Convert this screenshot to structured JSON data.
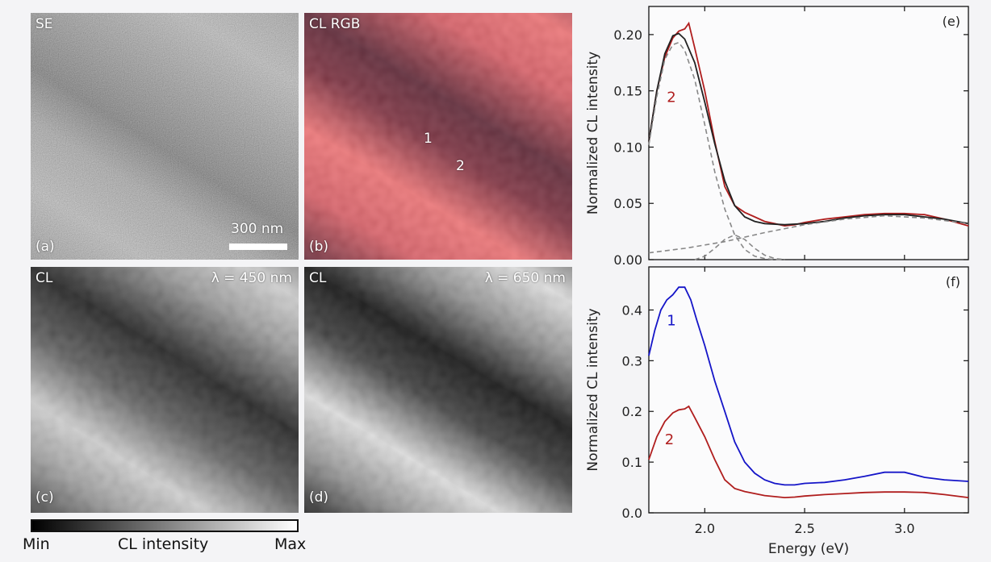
{
  "images": {
    "a": {
      "panel_tag": "(a)",
      "mode": "SE",
      "scalebar_label": "300 nm"
    },
    "b": {
      "panel_tag": "(b)",
      "mode": "CL RGB",
      "point_1": "1",
      "point_2": "2"
    },
    "c": {
      "panel_tag": "(c)",
      "mode": "CL",
      "wavelength": "λ = 450 nm"
    },
    "d": {
      "panel_tag": "(d)",
      "mode": "CL",
      "wavelength": "λ = 650 nm"
    }
  },
  "colorbar": {
    "min_label": "Min",
    "title": "CL intensity",
    "max_label": "Max"
  },
  "colors": {
    "red": "#b01e1e",
    "blue": "#1515c8",
    "fit": "#222222",
    "gauss": "#888888"
  },
  "chart_data": [
    {
      "type": "line",
      "panel_tag": "(e)",
      "ylabel": "Normalized CL intensity",
      "xlabel": "",
      "xlim": [
        1.72,
        3.32
      ],
      "ylim": [
        0.0,
        0.225
      ],
      "xticks": [
        2.0,
        2.5,
        3.0
      ],
      "yticks": [
        0.0,
        0.05,
        0.1,
        0.15,
        0.2
      ],
      "ytick_labels": [
        "0.00",
        "0.05",
        "0.10",
        "0.15",
        "0.20"
      ],
      "annotations": [
        {
          "text": "2",
          "x": 1.81,
          "y": 0.14,
          "color": "#b01e1e"
        }
      ],
      "series": [
        {
          "name": "spectrum 2",
          "color": "#b01e1e",
          "x": [
            1.72,
            1.76,
            1.8,
            1.84,
            1.87,
            1.9,
            1.92,
            1.95,
            2.0,
            2.05,
            2.1,
            2.15,
            2.2,
            2.25,
            2.3,
            2.35,
            2.4,
            2.45,
            2.5,
            2.6,
            2.7,
            2.8,
            2.9,
            3.0,
            3.1,
            3.2,
            3.32
          ],
          "y": [
            0.105,
            0.15,
            0.18,
            0.197,
            0.203,
            0.205,
            0.21,
            0.188,
            0.15,
            0.105,
            0.065,
            0.048,
            0.042,
            0.038,
            0.034,
            0.032,
            0.03,
            0.031,
            0.033,
            0.036,
            0.038,
            0.04,
            0.041,
            0.041,
            0.04,
            0.036,
            0.03
          ]
        },
        {
          "name": "fit",
          "color": "#222222",
          "x": [
            1.72,
            1.76,
            1.8,
            1.84,
            1.87,
            1.9,
            1.95,
            2.0,
            2.05,
            2.1,
            2.15,
            2.2,
            2.25,
            2.3,
            2.4,
            2.5,
            2.6,
            2.7,
            2.8,
            2.9,
            3.0,
            3.1,
            3.2,
            3.32
          ],
          "y": [
            0.105,
            0.15,
            0.183,
            0.199,
            0.201,
            0.196,
            0.175,
            0.14,
            0.103,
            0.07,
            0.048,
            0.038,
            0.034,
            0.032,
            0.031,
            0.032,
            0.034,
            0.037,
            0.039,
            0.04,
            0.04,
            0.038,
            0.036,
            0.032
          ]
        },
        {
          "name": "gaussian 1",
          "color": "#888888",
          "dashed": true,
          "x": [
            1.72,
            1.76,
            1.8,
            1.84,
            1.87,
            1.9,
            1.95,
            2.0,
            2.05,
            2.1,
            2.15,
            2.2,
            2.25,
            2.3,
            2.35,
            2.4
          ],
          "y": [
            0.102,
            0.145,
            0.178,
            0.191,
            0.193,
            0.186,
            0.16,
            0.12,
            0.078,
            0.045,
            0.022,
            0.009,
            0.003,
            0.001,
            0.0,
            0.0
          ]
        },
        {
          "name": "gaussian 2",
          "color": "#888888",
          "dashed": true,
          "x": [
            1.95,
            2.0,
            2.05,
            2.1,
            2.15,
            2.2,
            2.25,
            2.3,
            2.35,
            2.4
          ],
          "y": [
            0.0,
            0.003,
            0.01,
            0.018,
            0.022,
            0.018,
            0.01,
            0.004,
            0.001,
            0.0
          ]
        },
        {
          "name": "gaussian 3",
          "color": "#888888",
          "dashed": true,
          "x": [
            1.72,
            1.9,
            2.1,
            2.3,
            2.5,
            2.7,
            2.9,
            3.1,
            3.32
          ],
          "y": [
            0.006,
            0.01,
            0.016,
            0.024,
            0.031,
            0.036,
            0.039,
            0.037,
            0.032
          ]
        }
      ]
    },
    {
      "type": "line",
      "panel_tag": "(f)",
      "ylabel": "Normalized CL intensity",
      "xlabel": "Energy (eV)",
      "xlim": [
        1.72,
        3.32
      ],
      "ylim": [
        0.0,
        0.485
      ],
      "xticks": [
        2.0,
        2.5,
        3.0
      ],
      "xtick_labels": [
        "2.0",
        "2.5",
        "3.0"
      ],
      "yticks": [
        0.0,
        0.1,
        0.2,
        0.3,
        0.4
      ],
      "ytick_labels": [
        "0.0",
        "0.1",
        "0.2",
        "0.3",
        "0.4"
      ],
      "annotations": [
        {
          "text": "1",
          "x": 1.81,
          "y": 0.37,
          "color": "#1515c8"
        },
        {
          "text": "2",
          "x": 1.8,
          "y": 0.135,
          "color": "#b01e1e"
        }
      ],
      "series": [
        {
          "name": "1",
          "color": "#1515c8",
          "x": [
            1.72,
            1.75,
            1.78,
            1.81,
            1.84,
            1.87,
            1.9,
            1.93,
            1.96,
            2.0,
            2.05,
            2.1,
            2.15,
            2.2,
            2.25,
            2.3,
            2.35,
            2.4,
            2.45,
            2.5,
            2.6,
            2.7,
            2.8,
            2.9,
            3.0,
            3.1,
            3.2,
            3.32
          ],
          "y": [
            0.31,
            0.36,
            0.4,
            0.42,
            0.43,
            0.445,
            0.445,
            0.42,
            0.38,
            0.33,
            0.26,
            0.2,
            0.14,
            0.1,
            0.078,
            0.065,
            0.058,
            0.055,
            0.055,
            0.058,
            0.06,
            0.065,
            0.072,
            0.08,
            0.08,
            0.07,
            0.065,
            0.062
          ]
        },
        {
          "name": "2",
          "color": "#b01e1e",
          "x": [
            1.72,
            1.76,
            1.8,
            1.84,
            1.87,
            1.9,
            1.92,
            1.95,
            2.0,
            2.05,
            2.1,
            2.15,
            2.2,
            2.25,
            2.3,
            2.35,
            2.4,
            2.45,
            2.5,
            2.6,
            2.7,
            2.8,
            2.9,
            3.0,
            3.1,
            3.2,
            3.32
          ],
          "y": [
            0.105,
            0.15,
            0.18,
            0.197,
            0.203,
            0.205,
            0.21,
            0.188,
            0.15,
            0.105,
            0.065,
            0.048,
            0.042,
            0.038,
            0.034,
            0.032,
            0.03,
            0.031,
            0.033,
            0.036,
            0.038,
            0.04,
            0.041,
            0.041,
            0.04,
            0.036,
            0.03
          ]
        }
      ]
    }
  ]
}
